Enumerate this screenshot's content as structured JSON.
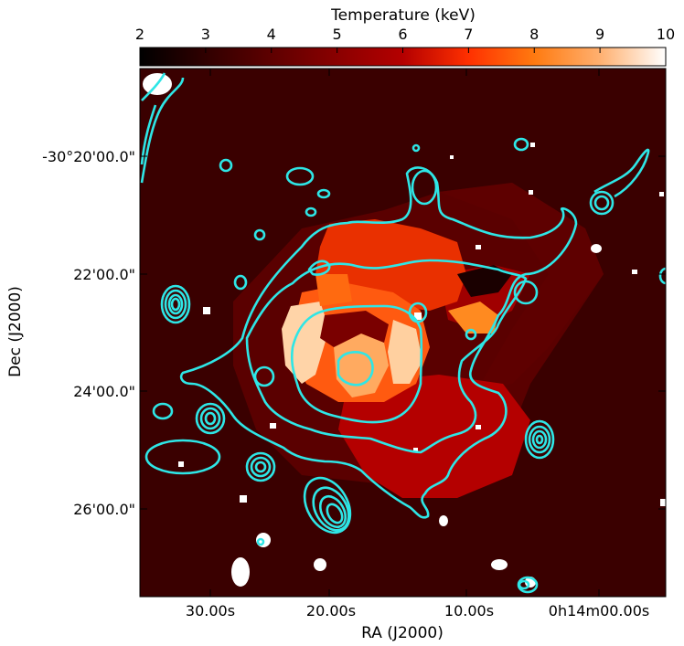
{
  "colorbar": {
    "title": "Temperature (keV)",
    "min": 2,
    "max": 10,
    "ticks": [
      "2",
      "3",
      "4",
      "5",
      "6",
      "7",
      "8",
      "9",
      "10"
    ],
    "colormap": "gist_heat",
    "colors": {
      "2": "#000000",
      "4": "#6a0000",
      "6": "#c00000",
      "7": "#ff2a00",
      "8": "#ff8a14",
      "9": "#ffbf7f",
      "10": "#ffffff"
    }
  },
  "axes": {
    "xlabel": "RA (J2000)",
    "ylabel": "Dec (J2000)",
    "xticks": [
      "30.00s",
      "20.00s",
      "10.00s",
      "0h14m00.00s"
    ],
    "yticks": [
      "-30°20'00.0\"",
      "22'00.0\"",
      "24'00.0\"",
      "26'00.0\""
    ]
  },
  "map": {
    "background_temperature_keV": 3.6,
    "contour_color": "#2ee6e6",
    "masked_color": "#ffffff"
  }
}
